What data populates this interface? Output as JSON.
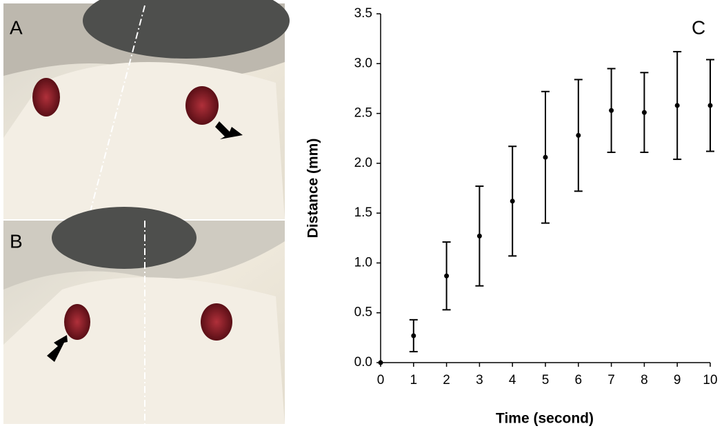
{
  "panel_labels": [
    "A",
    "B"
  ],
  "chart_data": {
    "type": "errorbar",
    "annotation": "C",
    "x_label": "Time (second)",
    "y_label": "Distance (mm)",
    "x": [
      0,
      1,
      2,
      3,
      4,
      5,
      6,
      7,
      8,
      9,
      10
    ],
    "values": [
      0,
      0.27,
      0.87,
      1.27,
      1.62,
      2.06,
      2.28,
      2.53,
      2.51,
      2.58,
      2.58
    ],
    "errors": [
      0,
      0.16,
      0.34,
      0.5,
      0.55,
      0.66,
      0.56,
      0.42,
      0.4,
      0.54,
      0.46
    ],
    "color": "#000000",
    "xlim": [
      0,
      10
    ],
    "xticks": [
      0,
      1,
      2,
      3,
      4,
      5,
      6,
      7,
      8,
      9,
      10
    ],
    "ylim": [
      0,
      3.5
    ],
    "yticks": [
      {
        "value": 0,
        "label": "0.0"
      },
      {
        "value": 0.5,
        "label": "0.5"
      },
      {
        "value": 1,
        "label": "1.0"
      },
      {
        "value": 1.5,
        "label": "1.5"
      },
      {
        "value": 2,
        "label": "2.0"
      },
      {
        "value": 2.5,
        "label": "2.5"
      },
      {
        "value": 3,
        "label": "3.0"
      },
      {
        "value": 3.5,
        "label": "3.5"
      }
    ]
  }
}
